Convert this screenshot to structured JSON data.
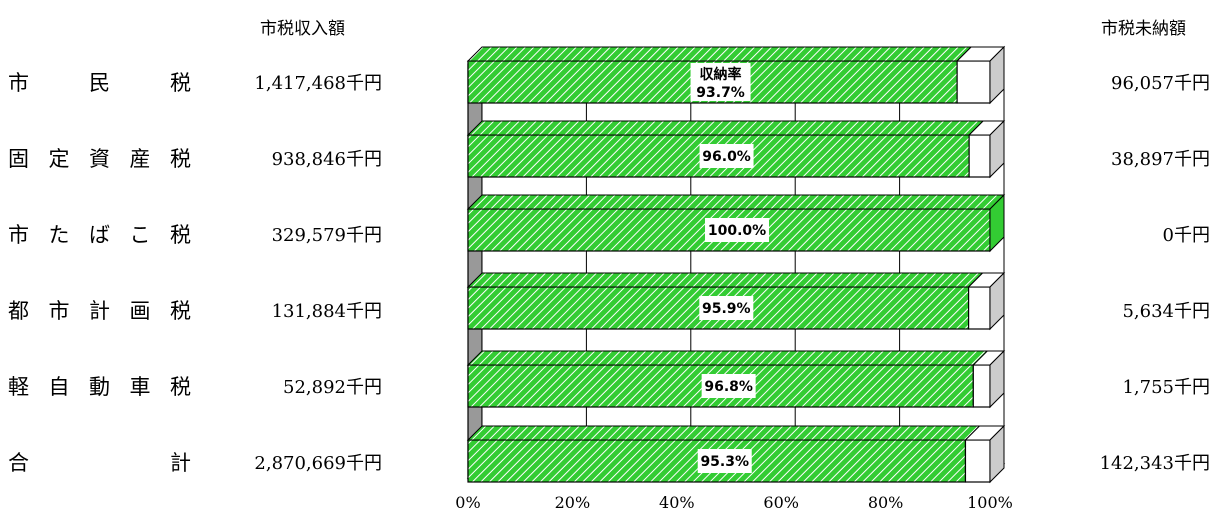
{
  "headers": {
    "income": "市税収入額",
    "unpaid": "市税未納額"
  },
  "chart_data": {
    "type": "bar",
    "orientation": "horizontal",
    "stacked": true,
    "annotation": "収納率",
    "categories": [
      "市民税",
      "固定資産税",
      "市たばこ税",
      "都市計画税",
      "軽自動車税",
      "合計"
    ],
    "category_chars": [
      [
        "市",
        "民",
        "税"
      ],
      [
        "固",
        "定",
        "資",
        "産",
        "税"
      ],
      [
        "市",
        "た",
        "ば",
        "こ",
        "税"
      ],
      [
        "都",
        "市",
        "計",
        "画",
        "税"
      ],
      [
        "軽",
        "自",
        "動",
        "車",
        "税"
      ],
      [
        "合",
        "計"
      ]
    ],
    "income_labels": [
      "1,417,468千円",
      "938,846千円",
      "329,579千円",
      "131,884千円",
      "52,892千円",
      "2,870,669千円"
    ],
    "unpaid_labels": [
      "96,057千円",
      "38,897千円",
      "0千円",
      "5,634千円",
      "1,755千円",
      "142,343千円"
    ],
    "rate_labels": [
      "93.7%",
      "96.0%",
      "100.0%",
      "95.9%",
      "96.8%",
      "95.3%"
    ],
    "series": [
      {
        "name": "収納率",
        "values": [
          93.7,
          96.0,
          100.0,
          95.9,
          96.8,
          95.3
        ]
      }
    ],
    "x_ticks": [
      "0%",
      "20%",
      "40%",
      "60%",
      "80%",
      "100%"
    ],
    "xlim": [
      0,
      100
    ],
    "grid": true,
    "colors": {
      "collected": "#33cc33",
      "hatch": "#ffffff",
      "remaining": "#ffffff",
      "wall": "#999999"
    }
  }
}
